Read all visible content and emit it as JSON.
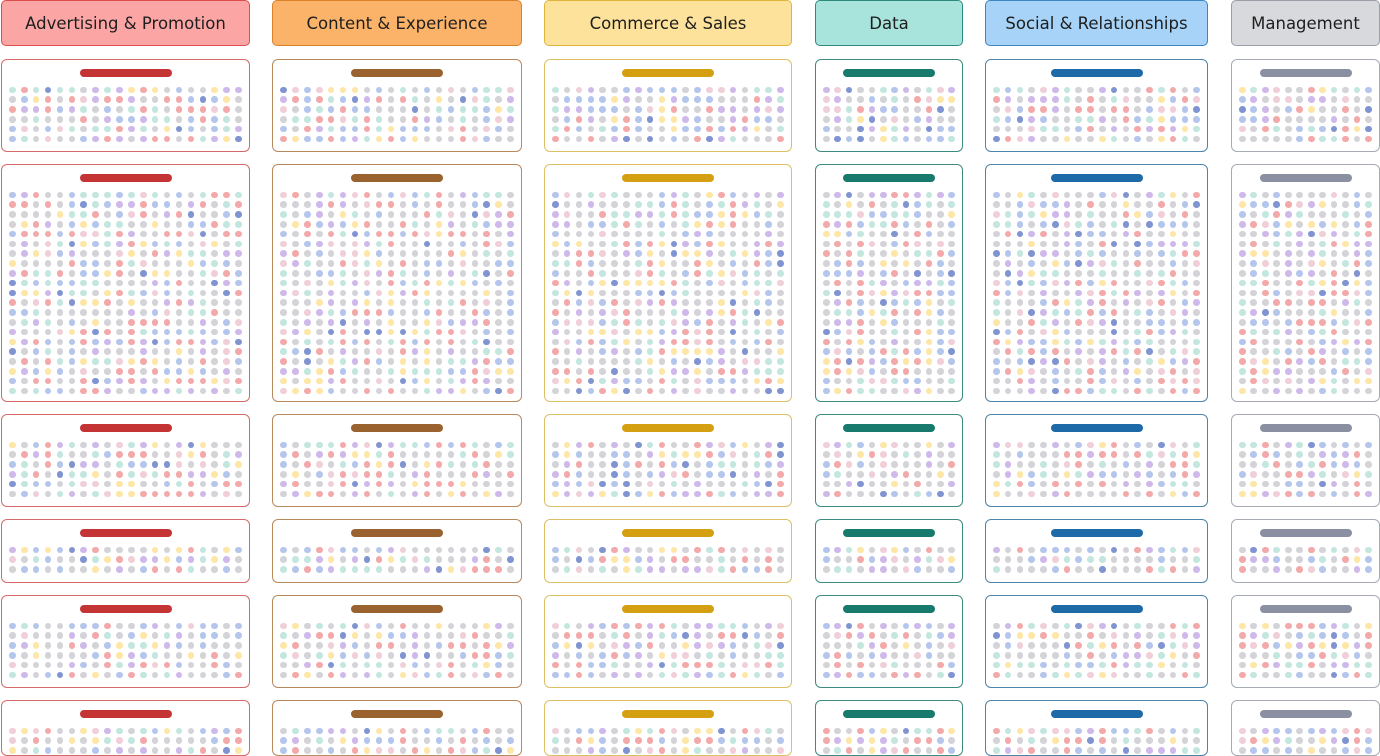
{
  "columns": [
    {
      "label": "Advertising & Promotion",
      "header_bg": "#fca5a5",
      "header_border": "#dc4d4d",
      "card_border": "#d46a6a",
      "tab_color": "#c53434"
    },
    {
      "label": "Content & Experience",
      "header_bg": "#fbb36a",
      "header_border": "#d9822b",
      "card_border": "#b98a5e",
      "tab_color": "#99622f"
    },
    {
      "label": "Commerce & Sales",
      "header_bg": "#fde29b",
      "header_border": "#ddb53d",
      "card_border": "#ddbf67",
      "tab_color": "#d4a012"
    },
    {
      "label": "Data",
      "header_bg": "#a8e3dc",
      "header_border": "#2e8a7e",
      "card_border": "#3d8a82",
      "tab_color": "#177a6d"
    },
    {
      "label": "Social & Relationships",
      "header_bg": "#a6d3f7",
      "header_border": "#3a86c2",
      "card_border": "#4d84a9",
      "tab_color": "#1e6aa8"
    },
    {
      "label": "Management",
      "header_bg": "#d7d9dd",
      "header_border": "#9a9ea6",
      "card_border": "#a7abb3",
      "tab_color": "#8a8fa2"
    }
  ],
  "dot_palette": [
    "#d3d3d8",
    "#f3a9a9",
    "#b5c6ec",
    "#c3e6df",
    "#fde6a6",
    "#cfb9ea",
    "#f0cfd8",
    "#8094d2"
  ]
}
